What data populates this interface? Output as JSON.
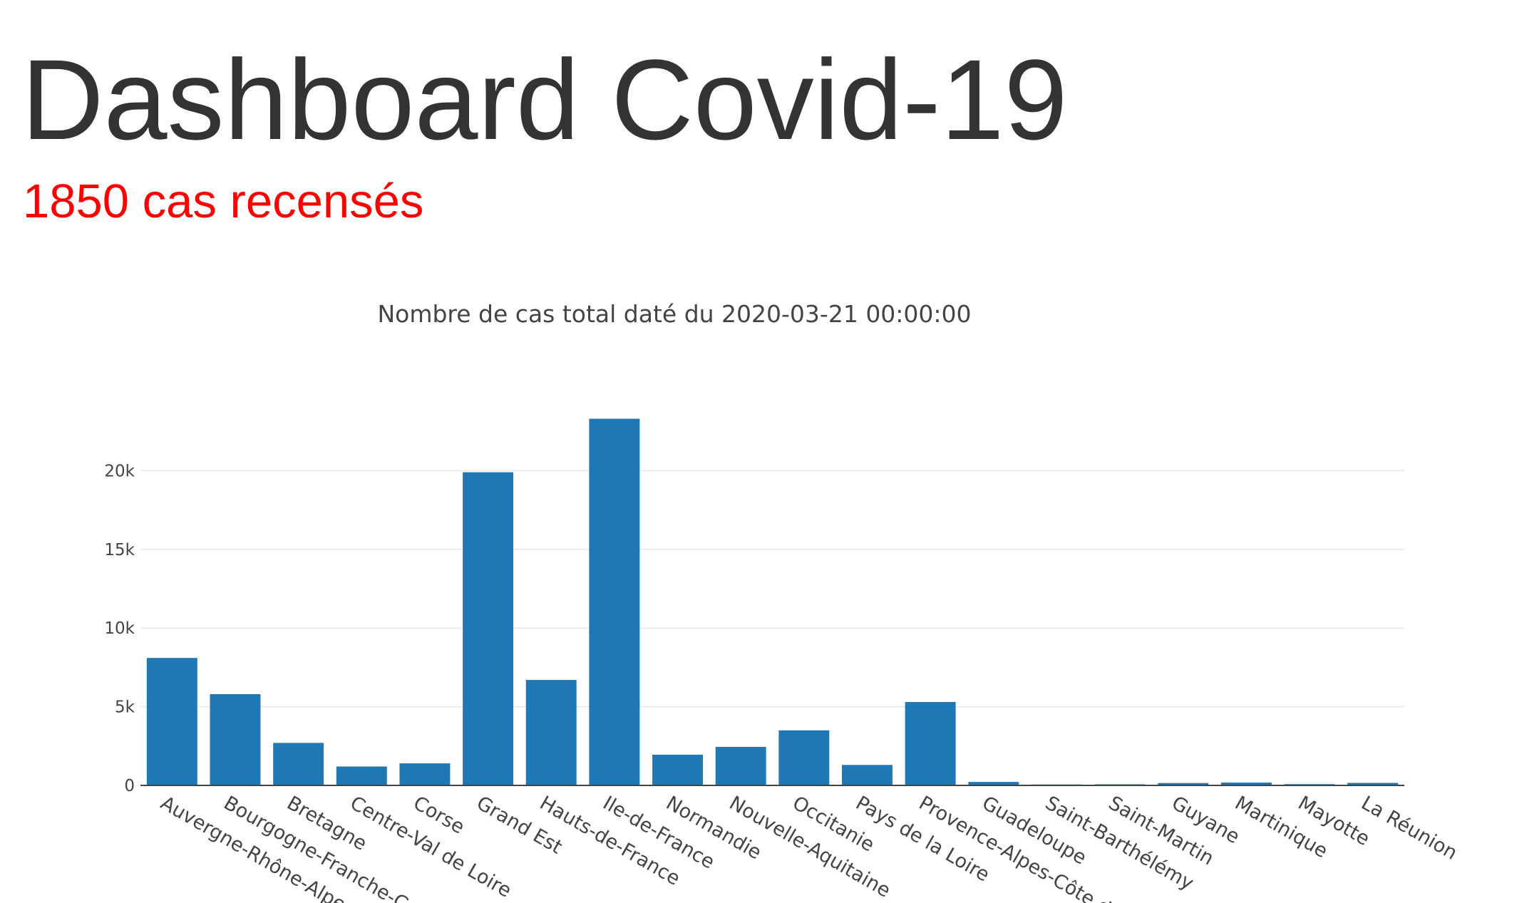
{
  "header": {
    "title": "Dashboard Covid-19",
    "case_count": "1850 cas recensés",
    "case_count_color": "#ff0000"
  },
  "chart_data": {
    "type": "bar",
    "title": "Nombre de cas total daté du 2020-03-21 00:00:00",
    "xlabel": "",
    "ylabel": "",
    "ylim": [
      0,
      25000
    ],
    "yticks": [
      0,
      5000,
      10000,
      15000,
      20000
    ],
    "ytick_labels": [
      "0",
      "5k",
      "10k",
      "15k",
      "20k"
    ],
    "grid": true,
    "bar_color": "#1f77b4",
    "categories": [
      "Auvergne-Rhône-Alpes",
      "Bourgogne-Franche-Comté",
      "Bretagne",
      "Centre-Val de Loire",
      "Corse",
      "Grand Est",
      "Hauts-de-France",
      "Ile-de-France",
      "Normandie",
      "Nouvelle-Aquitaine",
      "Occitanie",
      "Pays de la Loire",
      "Provence-Alpes-Côte d'Azur",
      "Guadeloupe",
      "Saint-Barthélémy",
      "Saint-Martin",
      "Guyane",
      "Martinique",
      "Mayotte",
      "La Réunion"
    ],
    "values": [
      8100,
      5800,
      2700,
      1200,
      1400,
      19900,
      6700,
      23300,
      1950,
      2450,
      3500,
      1300,
      5300,
      220,
      60,
      70,
      150,
      180,
      80,
      160
    ]
  }
}
